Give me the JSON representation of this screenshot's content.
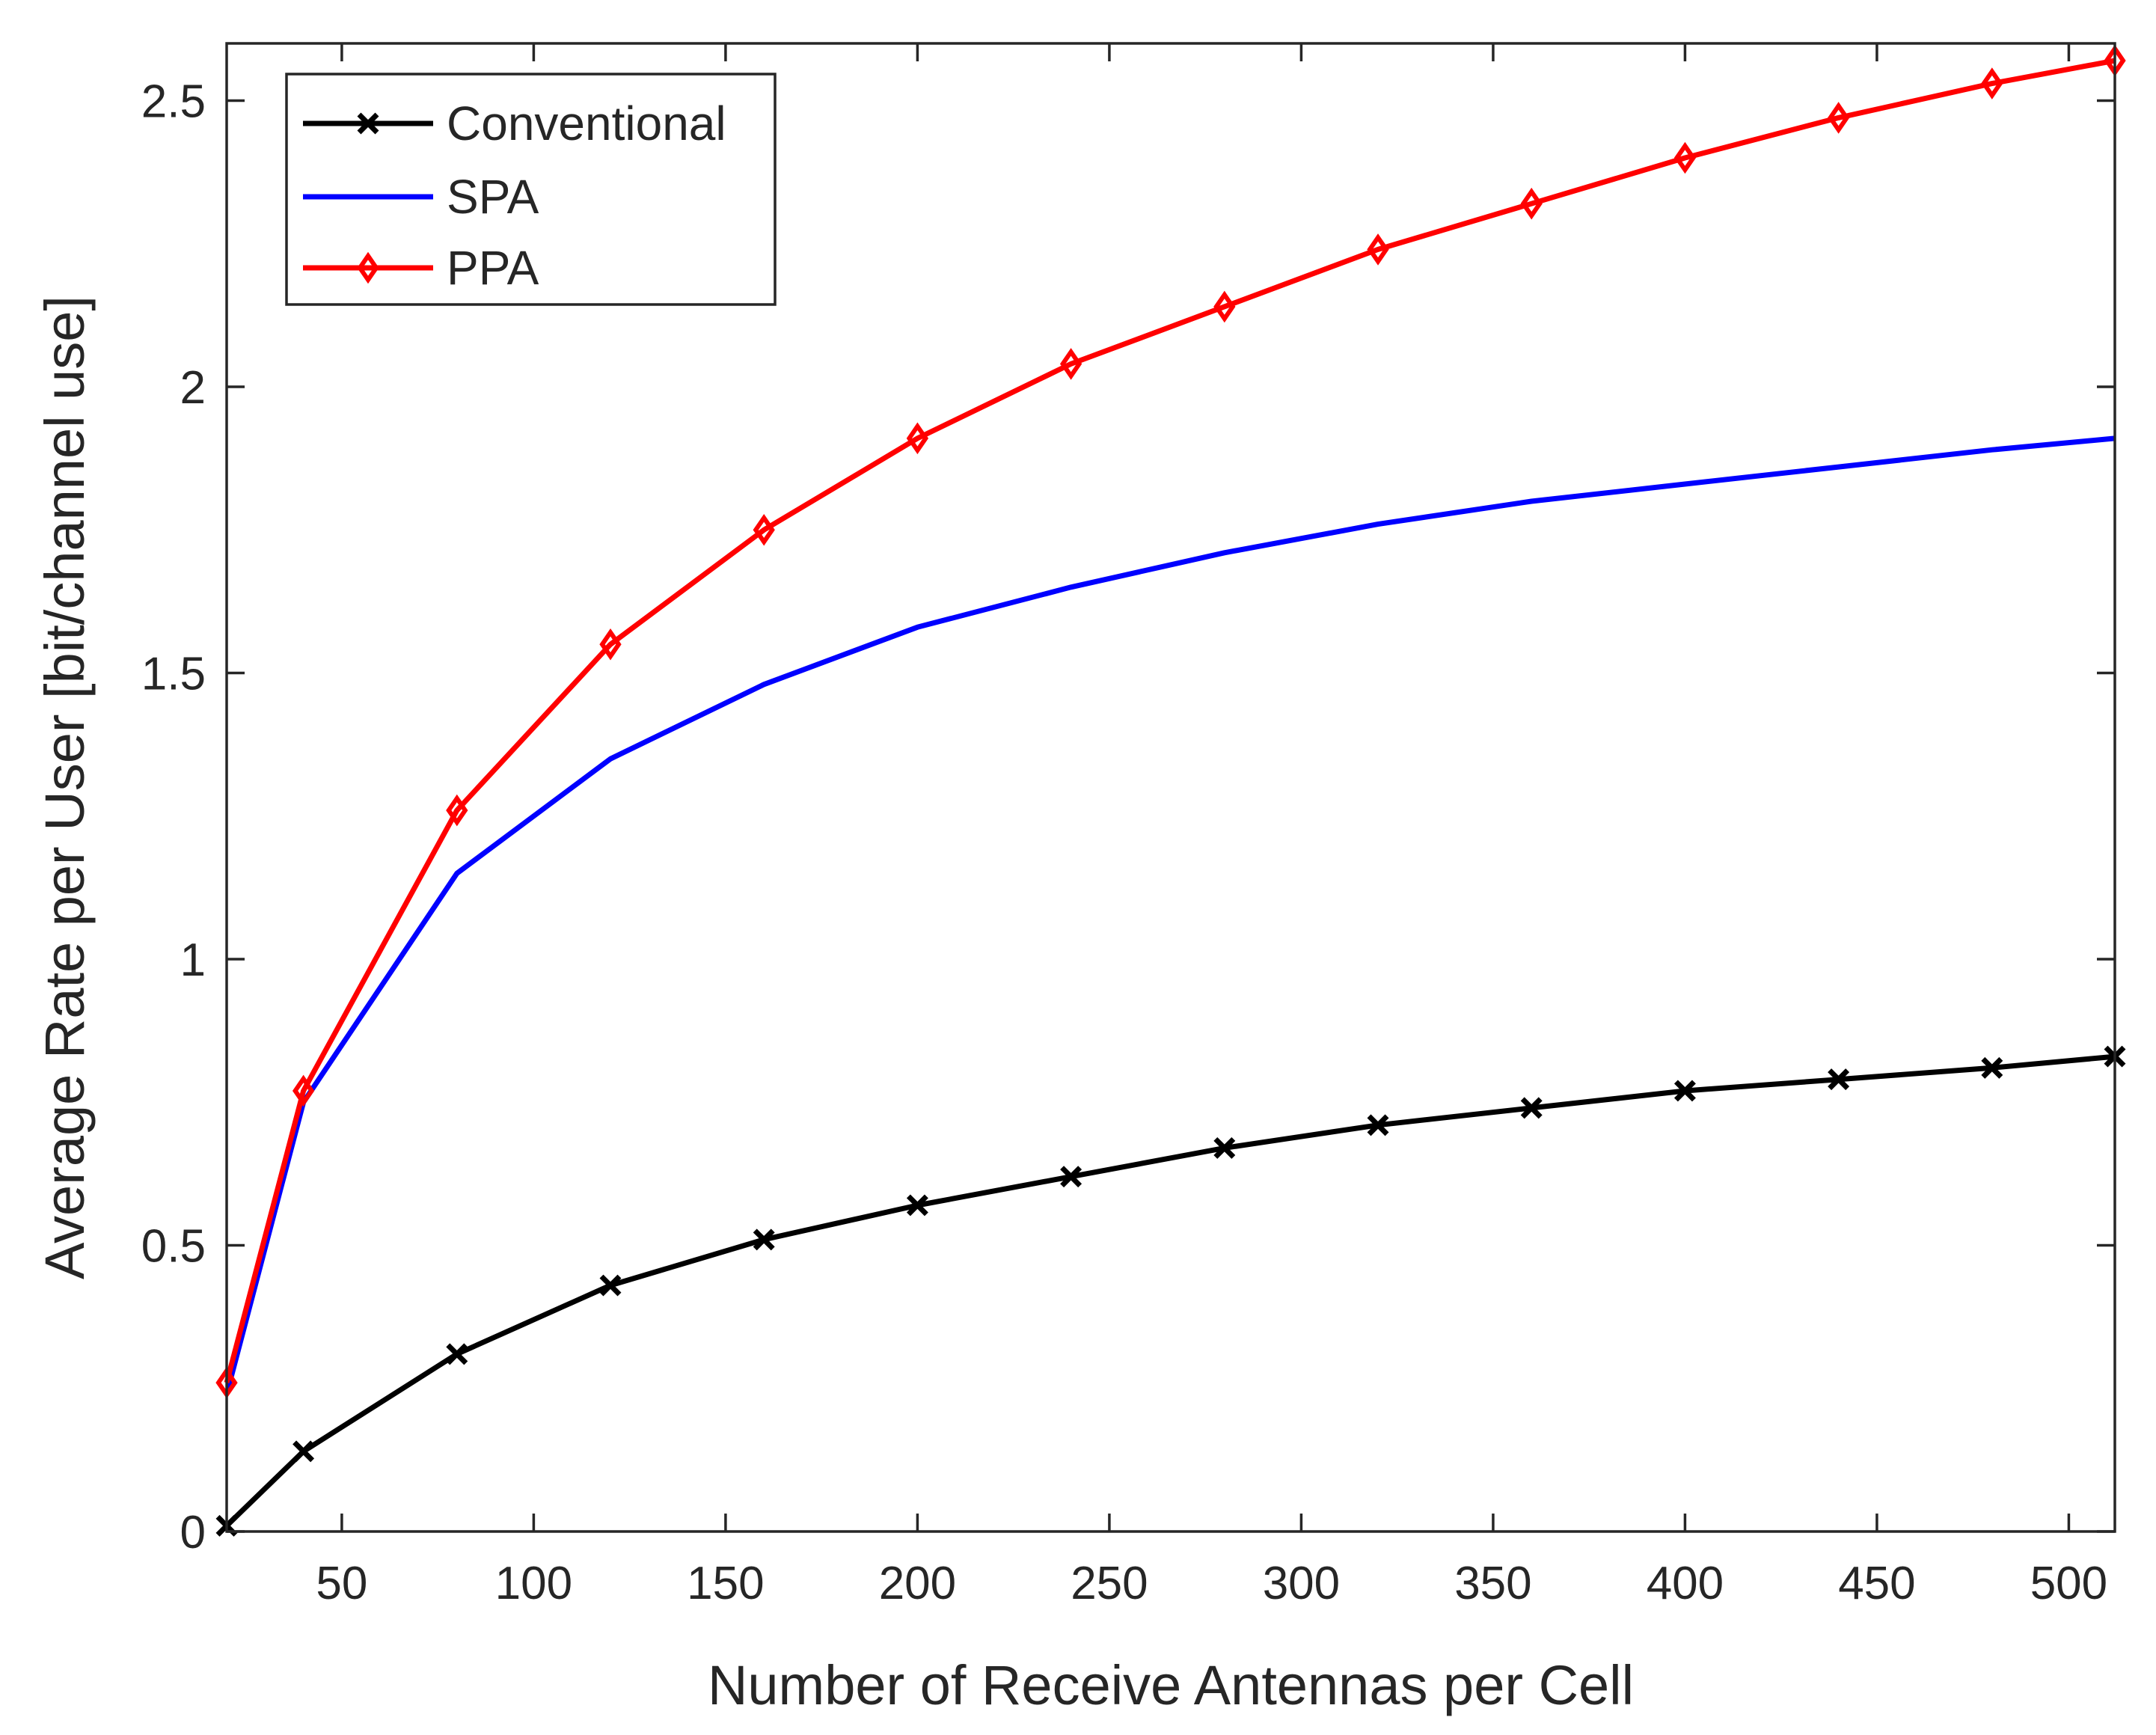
{
  "chart_data": {
    "type": "line",
    "title": "",
    "xlabel": "Number of Receive Antennas per Cell",
    "ylabel": "Average Rate per User [bit/channel use]",
    "xlim": [
      20,
      512
    ],
    "ylim": [
      0,
      2.6
    ],
    "xticks": [
      50,
      100,
      150,
      200,
      250,
      300,
      350,
      400,
      450,
      500
    ],
    "xtick_labels": [
      "50",
      "100",
      "150",
      "200",
      "250",
      "300",
      "350",
      "400",
      "450",
      "500"
    ],
    "yticks": [
      0,
      0.5,
      1,
      1.5,
      2,
      2.5
    ],
    "ytick_labels": [
      "0",
      "0.5",
      "1",
      "1.5",
      "2",
      "2.5"
    ],
    "grid": false,
    "legend_position": "top-left",
    "x": [
      20,
      40,
      80,
      120,
      160,
      200,
      240,
      280,
      320,
      360,
      400,
      440,
      480,
      512
    ],
    "series": [
      {
        "name": "Conventional",
        "color": "#000000",
        "marker": "x",
        "values": [
          0.01,
          0.14,
          0.31,
          0.43,
          0.51,
          0.57,
          0.62,
          0.67,
          0.71,
          0.74,
          0.77,
          0.79,
          0.81,
          0.83
        ]
      },
      {
        "name": "SPA",
        "color": "#0000ff",
        "marker": "none",
        "values": [
          0.24,
          0.75,
          1.15,
          1.35,
          1.48,
          1.58,
          1.65,
          1.71,
          1.76,
          1.8,
          1.83,
          1.86,
          1.89,
          1.91
        ]
      },
      {
        "name": "PPA",
        "color": "#ff0000",
        "marker": "diamond",
        "values": [
          0.26,
          0.77,
          1.26,
          1.55,
          1.75,
          1.91,
          2.04,
          2.14,
          2.24,
          2.32,
          2.4,
          2.47,
          2.53,
          2.57
        ]
      }
    ]
  }
}
